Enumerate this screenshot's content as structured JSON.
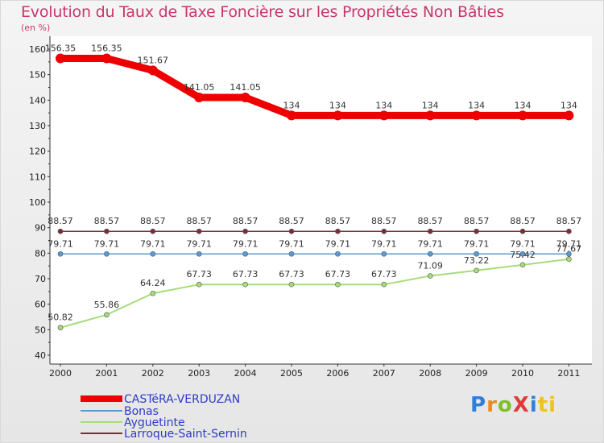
{
  "header": {
    "title": "Evolution du Taux de Taxe Foncière sur les Propriétés Non Bâties",
    "unit": "(en %)"
  },
  "logo": {
    "text": "ProXiti",
    "letters": [
      "P",
      "r",
      "o",
      "X",
      "i",
      "ti"
    ]
  },
  "chart_data": {
    "type": "line",
    "title": "Evolution du Taux de Taxe Foncière sur les Propriétés Non Bâties",
    "ylabel": "(en %)",
    "xlabel": "",
    "ylim": [
      40,
      160
    ],
    "yticks": [
      40,
      50,
      60,
      70,
      80,
      90,
      100,
      110,
      120,
      130,
      140,
      150,
      160
    ],
    "grid": false,
    "legend_position": "bottom-left",
    "x": [
      "2000",
      "2001",
      "2002",
      "2003",
      "2004",
      "2005",
      "2006",
      "2007",
      "2008",
      "2009",
      "2010",
      "2011"
    ],
    "series": [
      {
        "name": "CASTéRA-VERDUZAN",
        "color": "#ee0000",
        "values": [
          156.35,
          156.35,
          151.67,
          141.05,
          141.05,
          134,
          134,
          134,
          134,
          134,
          134,
          134
        ],
        "labels": [
          "156.35",
          "156.35",
          "151.67",
          "141.05",
          "141.05",
          "134",
          "134",
          "134",
          "134",
          "134",
          "134",
          "134"
        ]
      },
      {
        "name": "Bonas",
        "color": "#5b9bd5",
        "values": [
          79.71,
          79.71,
          79.71,
          79.71,
          79.71,
          79.71,
          79.71,
          79.71,
          79.71,
          79.71,
          79.71,
          79.71
        ],
        "labels": [
          "79.71",
          "79.71",
          "79.71",
          "79.71",
          "79.71",
          "79.71",
          "79.71",
          "79.71",
          "79.71",
          "79.71",
          "79.71",
          "79.71"
        ]
      },
      {
        "name": "Ayguetinte",
        "color": "#a6dc7a",
        "values": [
          50.82,
          55.86,
          64.24,
          67.73,
          67.73,
          67.73,
          67.73,
          67.73,
          71.09,
          73.22,
          75.42,
          77.67
        ],
        "labels": [
          "50.82",
          "55.86",
          "64.24",
          "67.73",
          "67.73",
          "67.73",
          "67.73",
          "67.73",
          "71.09",
          "73.22",
          "75.42",
          "77.67"
        ]
      },
      {
        "name": "Larroque-Saint-Sernin",
        "color": "#7a2e3a",
        "values": [
          88.57,
          88.57,
          88.57,
          88.57,
          88.57,
          88.57,
          88.57,
          88.57,
          88.57,
          88.57,
          88.57,
          88.57
        ],
        "labels": [
          "88.57",
          "88.57",
          "88.57",
          "88.57",
          "88.57",
          "88.57",
          "88.57",
          "88.57",
          "88.57",
          "88.57",
          "88.57",
          "88.57"
        ]
      }
    ]
  }
}
